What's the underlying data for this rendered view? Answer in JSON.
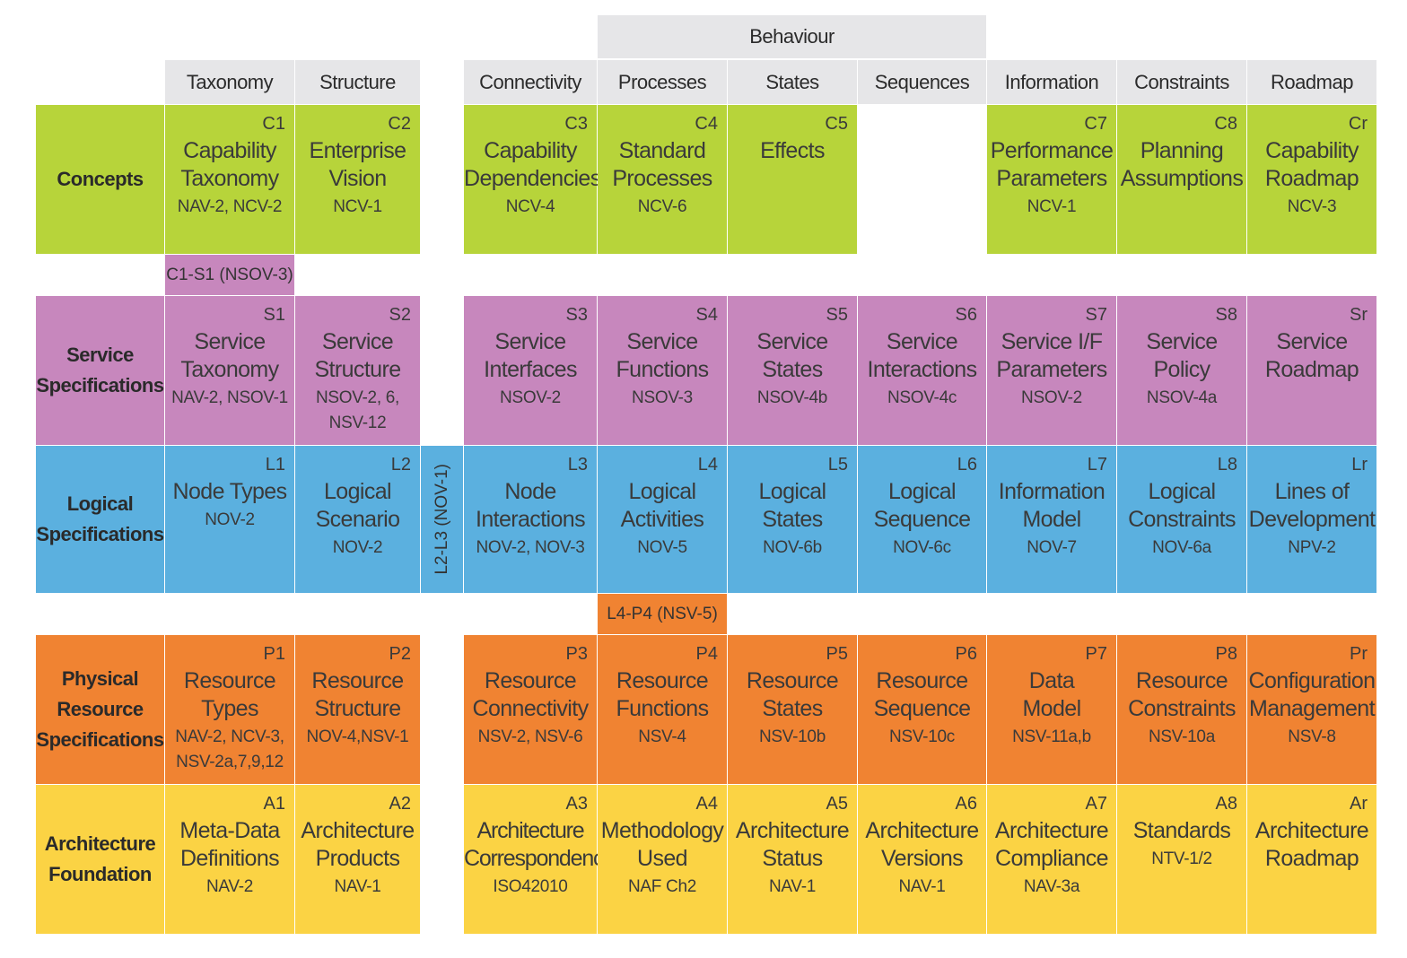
{
  "behaviour_header": "Behaviour",
  "columns": {
    "taxonomy": "Taxonomy",
    "structure": "Structure",
    "connectivity": "Connectivity",
    "processes": "Processes",
    "states": "States",
    "sequences": "Sequences",
    "information": "Information",
    "constraints": "Constraints",
    "roadmap": "Roadmap"
  },
  "rows": {
    "concepts": "Concepts",
    "service": "Service\nSpecifications",
    "logical": "Logical\nSpecifications",
    "physical": "Physical\nResource\nSpecifications",
    "foundation": "Architecture\nFoundation"
  },
  "bridges": {
    "c1s1": "C1-S1 (NSOV-3)",
    "l2l3": "L2-L3 (NOV-1)",
    "l4p4": "L4-P4 (NSV-5)"
  },
  "concepts": {
    "c1": {
      "code": "C1",
      "title": "Capability\nTaxonomy",
      "ref": "NAV-2, NCV-2"
    },
    "c2": {
      "code": "C2",
      "title": "Enterprise\nVision",
      "ref": "NCV-1"
    },
    "c3": {
      "code": "C3",
      "title": "Capability\nDependencies",
      "ref": "NCV-4"
    },
    "c4": {
      "code": "C4",
      "title": "Standard\nProcesses",
      "ref": "NCV-6"
    },
    "c5": {
      "code": "C5",
      "title": "Effects",
      "ref": ""
    },
    "c7": {
      "code": "C7",
      "title": "Performance\nParameters",
      "ref": "NCV-1"
    },
    "c8": {
      "code": "C8",
      "title": "Planning\nAssumptions",
      "ref": ""
    },
    "cr": {
      "code": "Cr",
      "title": "Capability\nRoadmap",
      "ref": "NCV-3"
    }
  },
  "service": {
    "s1": {
      "code": "S1",
      "title": "Service\nTaxonomy",
      "ref": "NAV-2, NSOV-1"
    },
    "s2": {
      "code": "S2",
      "title": "Service\nStructure",
      "ref": "NSOV-2, 6,\nNSV-12"
    },
    "s3": {
      "code": "S3",
      "title": "Service\nInterfaces",
      "ref": "NSOV-2"
    },
    "s4": {
      "code": "S4",
      "title": "Service\nFunctions",
      "ref": "NSOV-3"
    },
    "s5": {
      "code": "S5",
      "title": "Service\nStates",
      "ref": "NSOV-4b"
    },
    "s6": {
      "code": "S6",
      "title": "Service\nInteractions",
      "ref": "NSOV-4c"
    },
    "s7": {
      "code": "S7",
      "title": "Service I/F\nParameters",
      "ref": "NSOV-2"
    },
    "s8": {
      "code": "S8",
      "title": "Service\nPolicy",
      "ref": "NSOV-4a"
    },
    "sr": {
      "code": "Sr",
      "title": "Service\nRoadmap",
      "ref": ""
    }
  },
  "logical": {
    "l1": {
      "code": "L1",
      "title": "Node Types",
      "ref": "NOV-2"
    },
    "l2": {
      "code": "L2",
      "title": "Logical\nScenario",
      "ref": "NOV-2"
    },
    "l3": {
      "code": "L3",
      "title": "Node\nInteractions",
      "ref": "NOV-2, NOV-3"
    },
    "l4": {
      "code": "L4",
      "title": "Logical\nActivities",
      "ref": "NOV-5"
    },
    "l5": {
      "code": "L5",
      "title": "Logical\nStates",
      "ref": "NOV-6b"
    },
    "l6": {
      "code": "L6",
      "title": "Logical\nSequence",
      "ref": "NOV-6c"
    },
    "l7": {
      "code": "L7",
      "title": "Information\nModel",
      "ref": "NOV-7"
    },
    "l8": {
      "code": "L8",
      "title": "Logical\nConstraints",
      "ref": "NOV-6a"
    },
    "lr": {
      "code": "Lr",
      "title": "Lines of\nDevelopment",
      "ref": "NPV-2"
    }
  },
  "physical": {
    "p1": {
      "code": "P1",
      "title": "Resource\nTypes",
      "ref": "NAV-2, NCV-3,\nNSV-2a,7,9,12"
    },
    "p2": {
      "code": "P2",
      "title": "Resource\nStructure",
      "ref": "NOV-4,NSV-1"
    },
    "p3": {
      "code": "P3",
      "title": "Resource\nConnectivity",
      "ref": "NSV-2, NSV-6"
    },
    "p4": {
      "code": "P4",
      "title": "Resource\nFunctions",
      "ref": "NSV-4"
    },
    "p5": {
      "code": "P5",
      "title": "Resource\nStates",
      "ref": "NSV-10b"
    },
    "p6": {
      "code": "P6",
      "title": "Resource\nSequence",
      "ref": "NSV-10c"
    },
    "p7": {
      "code": "P7",
      "title": "Data\nModel",
      "ref": "NSV-11a,b"
    },
    "p8": {
      "code": "P8",
      "title": "Resource\nConstraints",
      "ref": "NSV-10a"
    },
    "pr": {
      "code": "Pr",
      "title": "Configuration\nManagement",
      "ref": "NSV-8"
    }
  },
  "foundation": {
    "a1": {
      "code": "A1",
      "title": "Meta-Data\nDefinitions",
      "ref": "NAV-2"
    },
    "a2": {
      "code": "A2",
      "title": "Architecture\nProducts",
      "ref": "NAV-1"
    },
    "a3": {
      "code": "A3",
      "title": "Architecture\nCorrespondence",
      "ref": "ISO42010"
    },
    "a4": {
      "code": "A4",
      "title": "Methodology\nUsed",
      "ref": "NAF Ch2"
    },
    "a5": {
      "code": "A5",
      "title": "Architecture\nStatus",
      "ref": "NAV-1"
    },
    "a6": {
      "code": "A6",
      "title": "Architecture\nVersions",
      "ref": "NAV-1"
    },
    "a7": {
      "code": "A7",
      "title": "Architecture\nCompliance",
      "ref": "NAV-3a"
    },
    "a8": {
      "code": "A8",
      "title": "Standards",
      "ref": "NTV-1/2"
    },
    "ar": {
      "code": "Ar",
      "title": "Architecture\nRoadmap",
      "ref": ""
    }
  },
  "colors": {
    "concepts": "#b7d43a",
    "service": "#c787bd",
    "logical": "#5bb0df",
    "physical": "#f08332",
    "foundation": "#fbd344",
    "header": "#e6e6e8"
  }
}
